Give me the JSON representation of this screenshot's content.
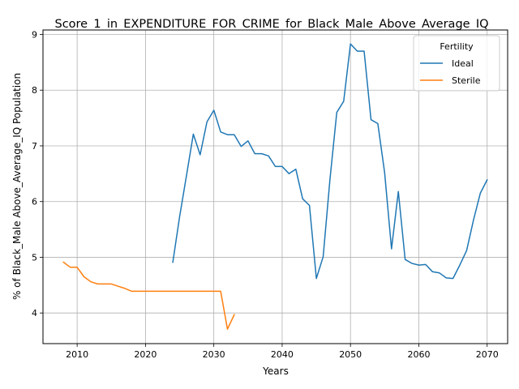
{
  "chart_data": {
    "type": "line",
    "title": "Score_1_in_EXPENDITURE_FOR_CRIME_for_Black_Male_Above_Average_IQ",
    "xlabel": "Years",
    "ylabel": "% of Black_Male Above_Average_IQ Population",
    "xlim": [
      2005,
      2073
    ],
    "ylim": [
      3.45,
      9.08
    ],
    "xticks": [
      2010,
      2020,
      2030,
      2040,
      2050,
      2060,
      2070
    ],
    "yticks": [
      4,
      5,
      6,
      7,
      8,
      9
    ],
    "grid": true,
    "legend": {
      "title": "Fertility",
      "placement": "top-right"
    },
    "series": [
      {
        "name": "Ideal",
        "color": "#1f77b4",
        "x": [
          2024,
          2025,
          2026,
          2027,
          2028,
          2029,
          2030,
          2031,
          2032,
          2033,
          2034,
          2035,
          2036,
          2037,
          2038,
          2039,
          2040,
          2041,
          2042,
          2043,
          2044,
          2045,
          2046,
          2047,
          2048,
          2049,
          2050,
          2051,
          2052,
          2053,
          2054,
          2055,
          2056,
          2057,
          2058,
          2059,
          2060,
          2061,
          2062,
          2063,
          2064,
          2065,
          2066,
          2067,
          2068,
          2069,
          2070
        ],
        "y": [
          4.91,
          5.73,
          6.47,
          7.21,
          6.84,
          7.43,
          7.64,
          7.25,
          7.2,
          7.2,
          6.99,
          7.09,
          6.86,
          6.86,
          6.82,
          6.63,
          6.63,
          6.5,
          6.58,
          6.05,
          5.93,
          4.62,
          5.01,
          6.4,
          7.6,
          7.8,
          8.83,
          8.7,
          8.7,
          7.47,
          7.4,
          6.52,
          5.15,
          6.18,
          4.96,
          4.89,
          4.86,
          4.87,
          4.74,
          4.72,
          4.63,
          4.62,
          4.86,
          5.12,
          5.67,
          6.15,
          6.39
        ]
      },
      {
        "name": "Sterile",
        "color": "#ff7f0e",
        "x": [
          2008,
          2009,
          2010,
          2011,
          2012,
          2013,
          2014,
          2015,
          2016,
          2017,
          2018,
          2019,
          2020,
          2021,
          2022,
          2023,
          2024,
          2025,
          2026,
          2027,
          2028,
          2029,
          2030,
          2031,
          2032,
          2033
        ],
        "y": [
          4.91,
          4.82,
          4.82,
          4.65,
          4.56,
          4.52,
          4.52,
          4.52,
          4.48,
          4.44,
          4.39,
          4.39,
          4.39,
          4.39,
          4.39,
          4.39,
          4.39,
          4.39,
          4.39,
          4.39,
          4.39,
          4.39,
          4.39,
          4.39,
          3.71,
          3.97
        ]
      }
    ]
  }
}
